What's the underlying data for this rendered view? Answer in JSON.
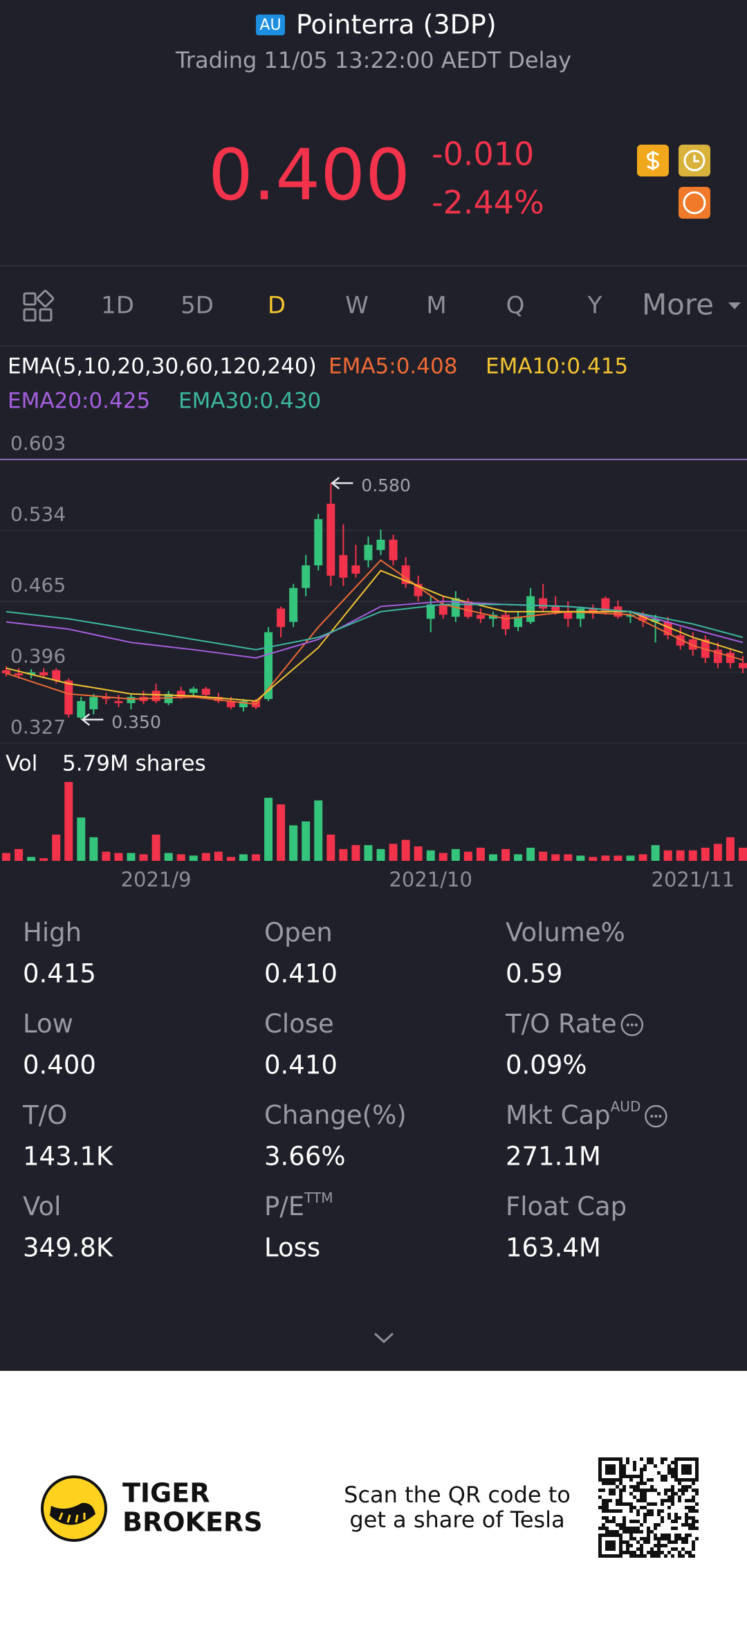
{
  "header": {
    "badge": "AU",
    "title": "Pointerra (3DP)",
    "subtitle": "Trading 11/05 13:22:00 AEDT Delay"
  },
  "quote": {
    "price": "0.400",
    "change": "-0.010",
    "change_pct": "-2.44%"
  },
  "tabs": [
    "1D",
    "5D",
    "D",
    "W",
    "M",
    "Q",
    "Y",
    "More"
  ],
  "chart_data": {
    "type": "candlestick",
    "legend_title": "EMA(5,10,20,30,60,120,240)",
    "up_color": "#35c47c",
    "down_color": "#f2334b",
    "categories": [
      null,
      null,
      null,
      null,
      null,
      null,
      null,
      null,
      null,
      null,
      null,
      null,
      "2021/9",
      null,
      null,
      null,
      null,
      null,
      null,
      null,
      null,
      null,
      null,
      null,
      null,
      null,
      null,
      null,
      null,
      null,
      null,
      null,
      null,
      null,
      "2021/10",
      null,
      null,
      null,
      null,
      null,
      null,
      null,
      null,
      null,
      null,
      null,
      null,
      null,
      null,
      null,
      null,
      null,
      null,
      null,
      null,
      "2021/11",
      null,
      null,
      null,
      null
    ],
    "open": [
      0.398,
      0.395,
      0.394,
      0.396,
      0.398,
      0.388,
      0.352,
      0.36,
      0.372,
      0.368,
      0.366,
      0.372,
      0.378,
      0.366,
      0.378,
      0.376,
      0.38,
      0.372,
      0.368,
      0.362,
      0.368,
      0.37,
      0.458,
      0.445,
      0.478,
      0.5,
      0.56,
      0.51,
      0.5,
      0.505,
      0.515,
      0.525,
      0.5,
      0.482,
      0.448,
      0.462,
      0.45,
      0.465,
      0.452,
      0.448,
      0.452,
      0.44,
      0.445,
      0.468,
      0.46,
      0.455,
      0.448,
      0.458,
      0.468,
      0.46,
      0.45,
      0.452,
      0.445,
      0.445,
      0.432,
      0.428,
      0.428,
      0.418,
      0.415,
      0.405
    ],
    "high": [
      0.402,
      0.4,
      0.399,
      0.4,
      0.4,
      0.39,
      0.372,
      0.375,
      0.376,
      0.374,
      0.375,
      0.378,
      0.385,
      0.378,
      0.382,
      0.382,
      0.382,
      0.376,
      0.372,
      0.37,
      0.37,
      0.44,
      0.46,
      0.482,
      0.51,
      0.55,
      0.58,
      0.54,
      0.52,
      0.528,
      0.535,
      0.53,
      0.508,
      0.49,
      0.47,
      0.47,
      0.475,
      0.468,
      0.458,
      0.455,
      0.456,
      0.455,
      0.478,
      0.482,
      0.47,
      0.465,
      0.46,
      0.462,
      0.47,
      0.466,
      0.456,
      0.455,
      0.452,
      0.45,
      0.44,
      0.435,
      0.432,
      0.425,
      0.418,
      0.412
    ],
    "low": [
      0.392,
      0.39,
      0.39,
      0.391,
      0.385,
      0.352,
      0.35,
      0.355,
      0.365,
      0.362,
      0.36,
      0.365,
      0.366,
      0.364,
      0.37,
      0.372,
      0.372,
      0.366,
      0.36,
      0.358,
      0.36,
      0.368,
      0.43,
      0.44,
      0.47,
      0.495,
      0.48,
      0.48,
      0.488,
      0.498,
      0.51,
      0.5,
      0.478,
      0.465,
      0.435,
      0.448,
      0.445,
      0.448,
      0.444,
      0.44,
      0.432,
      0.436,
      0.443,
      0.455,
      0.452,
      0.44,
      0.44,
      0.448,
      0.452,
      0.448,
      0.444,
      0.44,
      0.425,
      0.428,
      0.418,
      0.412,
      0.405,
      0.4,
      0.4,
      0.395
    ],
    "close": [
      0.395,
      0.393,
      0.396,
      0.393,
      0.388,
      0.355,
      0.368,
      0.372,
      0.37,
      0.366,
      0.372,
      0.368,
      0.368,
      0.375,
      0.372,
      0.38,
      0.374,
      0.368,
      0.362,
      0.368,
      0.362,
      0.435,
      0.44,
      0.478,
      0.5,
      0.545,
      0.49,
      0.488,
      0.492,
      0.52,
      0.525,
      0.505,
      0.482,
      0.47,
      0.462,
      0.452,
      0.468,
      0.45,
      0.448,
      0.452,
      0.438,
      0.45,
      0.47,
      0.458,
      0.455,
      0.448,
      0.458,
      0.455,
      0.455,
      0.45,
      0.452,
      0.446,
      0.448,
      0.432,
      0.422,
      0.418,
      0.41,
      0.405,
      0.405,
      0.4
    ],
    "ylim": [
      0.327,
      0.603
    ],
    "yticks": [
      0.603,
      0.534,
      0.465,
      0.396,
      0.327
    ],
    "grid": true,
    "ema": [
      {
        "name": "EMA5:0.408",
        "color": "#f06a35",
        "x": [
          0,
          5,
          10,
          15,
          20,
          25,
          30,
          35,
          40,
          45,
          50,
          55,
          59
        ],
        "values": [
          0.395,
          0.375,
          0.37,
          0.372,
          0.365,
          0.44,
          0.505,
          0.462,
          0.448,
          0.455,
          0.452,
          0.422,
          0.408
        ]
      },
      {
        "name": "EMA10:0.415",
        "color": "#f4c430",
        "x": [
          0,
          5,
          10,
          15,
          20,
          25,
          30,
          35,
          40,
          45,
          50,
          55,
          59
        ],
        "values": [
          0.4,
          0.385,
          0.375,
          0.373,
          0.368,
          0.42,
          0.495,
          0.47,
          0.455,
          0.455,
          0.455,
          0.43,
          0.415
        ]
      },
      {
        "name": "EMA20:0.425",
        "color": "#a65fe0",
        "x": [
          0,
          5,
          10,
          15,
          20,
          25,
          30,
          35,
          40,
          45,
          50,
          55,
          59
        ],
        "values": [
          0.445,
          0.438,
          0.425,
          0.418,
          0.41,
          0.428,
          0.46,
          0.465,
          0.462,
          0.46,
          0.455,
          0.438,
          0.425
        ]
      },
      {
        "name": "EMA30:0.430",
        "color": "#3cb8a0",
        "x": [
          0,
          5,
          10,
          15,
          20,
          25,
          30,
          35,
          40,
          45,
          50,
          55,
          59
        ],
        "values": [
          0.455,
          0.448,
          0.438,
          0.428,
          0.418,
          0.43,
          0.455,
          0.462,
          0.462,
          0.46,
          0.455,
          0.443,
          0.43
        ]
      }
    ],
    "annotations": [
      {
        "value": 0.58,
        "label": "0.580",
        "at": "high"
      },
      {
        "value": 0.35,
        "label": "0.350",
        "at": "low"
      }
    ],
    "volume_label": "Vol",
    "volume_readout": "5.79M shares",
    "volume": [
      0.6,
      0.9,
      0.3,
      0.2,
      2.0,
      6.0,
      3.3,
      1.8,
      0.7,
      0.6,
      0.6,
      0.5,
      2.0,
      0.6,
      0.5,
      0.4,
      0.6,
      0.7,
      0.3,
      0.5,
      0.5,
      4.8,
      4.3,
      2.7,
      3.0,
      4.6,
      2.0,
      0.9,
      1.2,
      1.2,
      0.9,
      1.3,
      1.6,
      1.1,
      0.8,
      0.6,
      0.9,
      0.7,
      1.0,
      0.5,
      0.9,
      0.5,
      1.0,
      0.7,
      0.5,
      0.5,
      0.4,
      0.3,
      0.4,
      0.4,
      0.4,
      0.5,
      1.2,
      0.8,
      0.8,
      0.8,
      1.0,
      1.3,
      1.8,
      1.0
    ]
  },
  "stats": [
    {
      "label": "High",
      "value": "0.415"
    },
    {
      "label": "Open",
      "value": "0.410"
    },
    {
      "label": "Volume%",
      "value": "0.59"
    },
    {
      "label": "Low",
      "value": "0.400"
    },
    {
      "label": "Close",
      "value": "0.410"
    },
    {
      "label": "T/O Rate",
      "value": "0.09%",
      "info": true
    },
    {
      "label": "T/O",
      "value": "143.1K"
    },
    {
      "label": "Change(%)",
      "value": "3.66%"
    },
    {
      "label": "Mkt Cap",
      "sup": "AUD",
      "value": "271.1M",
      "info": true
    },
    {
      "label": "Vol",
      "value": "349.8K"
    },
    {
      "label": "P/E",
      "sup": "TTM",
      "value": "Loss"
    },
    {
      "label": "Float Cap",
      "value": "163.4M"
    }
  ],
  "footer": {
    "brand_line1": "TIGER",
    "brand_line2": "BROKERS",
    "promo_line1": "Scan the QR code to",
    "promo_line2": "get a share of Tesla"
  }
}
